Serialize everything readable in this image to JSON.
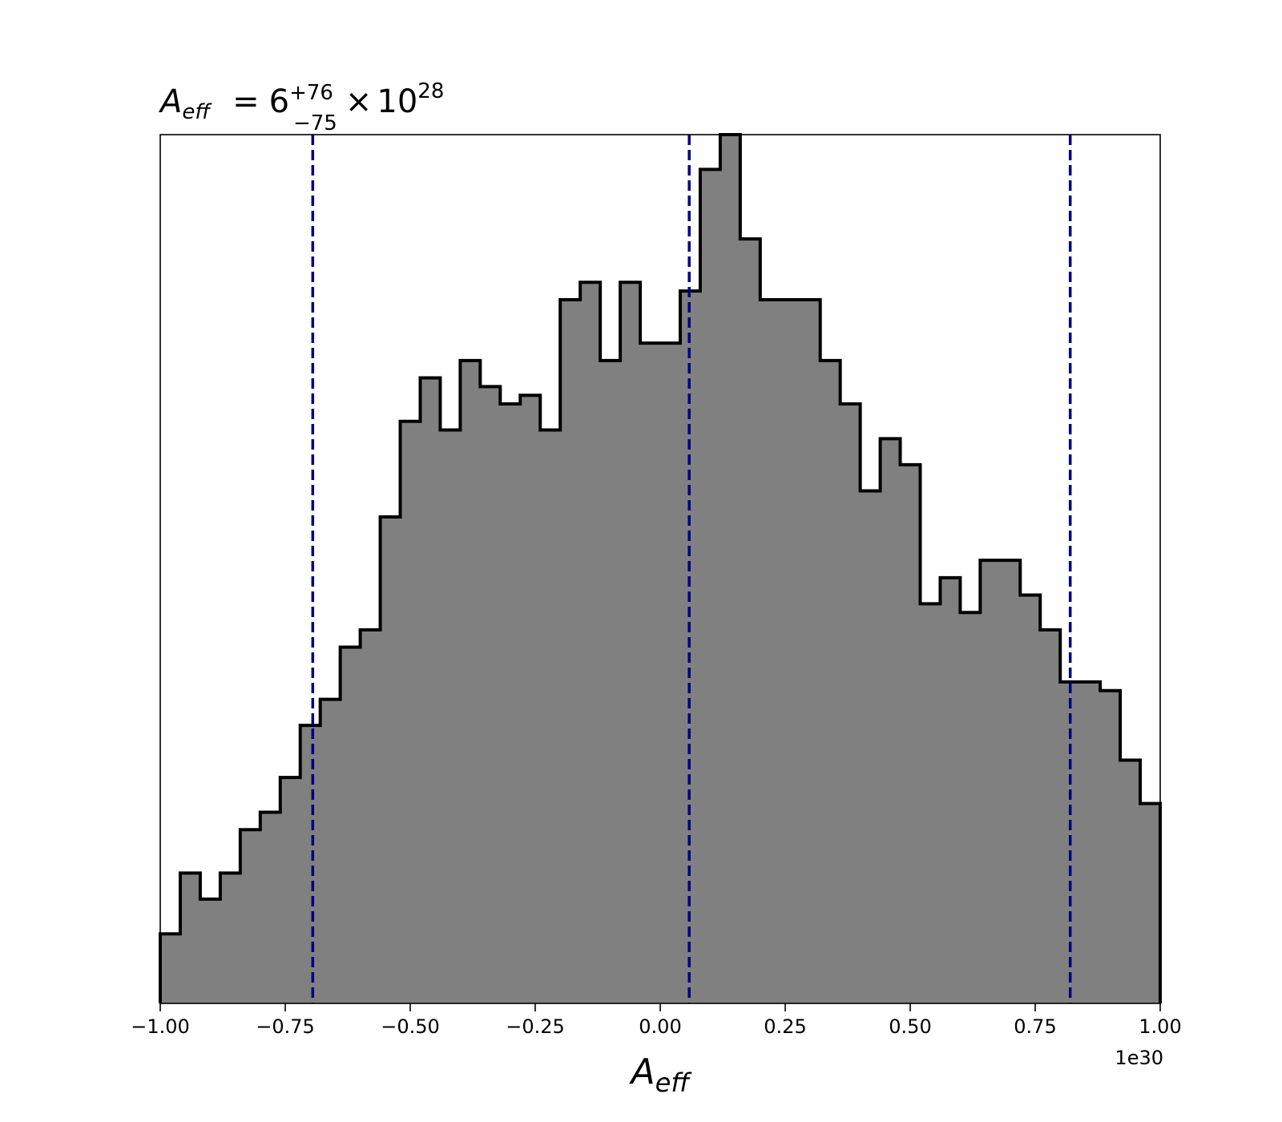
{
  "chart_data": {
    "type": "bar",
    "subtype": "step-histogram",
    "title": {
      "symbol": "A",
      "symbol_sub": "eff",
      "equals": "=",
      "value": "6",
      "upper": "+76",
      "lower": "−75",
      "times": "×",
      "base": "10",
      "exponent": "28"
    },
    "xlabel": {
      "symbol": "A",
      "sub": "eff"
    },
    "ylabel": "",
    "x_offset_label": "1e30",
    "xlim": [
      -1.0,
      1.0
    ],
    "ylim": [
      0,
      100
    ],
    "y_ticks_shown": false,
    "grid": false,
    "legend": "none",
    "xticks": [
      {
        "value": -1.0,
        "label": "−1.00"
      },
      {
        "value": -0.75,
        "label": "−0.75"
      },
      {
        "value": -0.5,
        "label": "−0.50"
      },
      {
        "value": -0.25,
        "label": "−0.25"
      },
      {
        "value": 0.0,
        "label": "0.00"
      },
      {
        "value": 0.25,
        "label": "0.25"
      },
      {
        "value": 0.5,
        "label": "0.50"
      },
      {
        "value": 0.75,
        "label": "0.75"
      },
      {
        "value": 1.0,
        "label": "1.00"
      }
    ],
    "bin_edges": [
      -1.0,
      -0.96,
      -0.92,
      -0.88,
      -0.84,
      -0.8,
      -0.76,
      -0.72,
      -0.68,
      -0.64,
      -0.6,
      -0.56,
      -0.52,
      -0.48,
      -0.44,
      -0.4,
      -0.36,
      -0.32,
      -0.28,
      -0.24,
      -0.2,
      -0.16,
      -0.12,
      -0.08,
      -0.04,
      0.0,
      0.04,
      0.08,
      0.12,
      0.16,
      0.2,
      0.24,
      0.28,
      0.32,
      0.36,
      0.4,
      0.44,
      0.48,
      0.52,
      0.56,
      0.6,
      0.64,
      0.68,
      0.72,
      0.76,
      0.8,
      0.84,
      0.88,
      0.92,
      0.96,
      1.0
    ],
    "values": [
      8,
      15,
      12,
      15,
      20,
      22,
      26,
      32,
      35,
      41,
      43,
      56,
      67,
      72,
      66,
      74,
      71,
      69,
      70,
      66,
      81,
      83,
      74,
      83,
      76,
      76,
      82,
      96,
      100,
      88,
      81,
      81,
      81,
      74,
      69,
      59,
      65,
      62,
      46,
      49,
      45,
      51,
      51,
      47,
      43,
      37,
      37,
      36,
      28,
      23
    ],
    "vlines": [
      -0.695,
      0.058,
      0.82
    ],
    "colors": {
      "fill": "#808080",
      "edge": "#000000",
      "vline": "#00007f",
      "axes": "#000000"
    }
  }
}
